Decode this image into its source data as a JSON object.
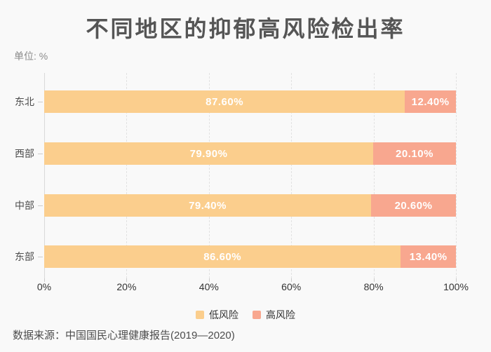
{
  "title": "不同地区的抑郁高风险检出率",
  "unit_label": "单位: %",
  "source": "数据来源：中国国民心理健康报告(2019—2020)",
  "colors": {
    "low_risk": "#FBCE8D",
    "high_risk": "#F8A78F",
    "background": "#F9F9F9",
    "title_text": "#555555",
    "axis_text": "#333333",
    "grid_line": "#E2E2E2"
  },
  "legend": [
    {
      "label": "低风险",
      "color": "#FBCE8D"
    },
    {
      "label": "高风险",
      "color": "#F8A78F"
    }
  ],
  "chart_data": {
    "type": "bar",
    "orientation": "horizontal",
    "stacked": true,
    "title": "不同地区的抑郁高风险检出率",
    "unit": "%",
    "categories": [
      "东北",
      "西部",
      "中部",
      "东部"
    ],
    "series": [
      {
        "name": "低风险",
        "color": "#FBCE8D",
        "values": [
          87.6,
          79.9,
          79.4,
          86.6
        ],
        "labels": [
          "87.60%",
          "79.90%",
          "79.40%",
          "86.60%"
        ]
      },
      {
        "name": "高风险",
        "color": "#F8A78F",
        "values": [
          12.4,
          20.1,
          20.6,
          13.4
        ],
        "labels": [
          "12.40%",
          "20.10%",
          "20.60%",
          "13.40%"
        ]
      }
    ],
    "x_ticks": [
      "0%",
      "20%",
      "40%",
      "60%",
      "80%",
      "100%"
    ],
    "xlim": [
      0,
      100
    ],
    "grid": "dashed-vertical",
    "legend_position": "bottom"
  }
}
